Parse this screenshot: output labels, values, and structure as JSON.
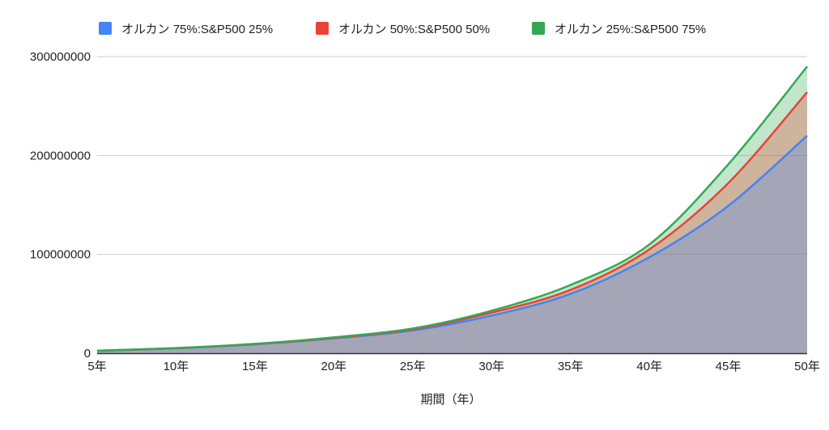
{
  "chart_data": {
    "type": "area",
    "title": "",
    "xlabel": "期間（年）",
    "ylabel": "",
    "categories": [
      "5年",
      "10年",
      "15年",
      "20年",
      "25年",
      "30年",
      "35年",
      "40年",
      "45年",
      "50年"
    ],
    "yticks": [
      "0",
      "100000000",
      "200000000",
      "300000000"
    ],
    "ylim": [
      0,
      300000000
    ],
    "grid": true,
    "legend_position": "top",
    "series": [
      {
        "name": "オルカン 75%:S&P500 25%",
        "color": "#4285f4",
        "values": [
          2500000,
          5000000,
          9000000,
          15000000,
          23000000,
          38000000,
          60000000,
          97000000,
          149000000,
          220000000
        ]
      },
      {
        "name": "オルカン 50%:S&P500 50%",
        "color": "#ea4335",
        "values": [
          2500000,
          5100000,
          9300000,
          15500000,
          24000000,
          41000000,
          64000000,
          105000000,
          172000000,
          264000000
        ]
      },
      {
        "name": "オルカン 25%:S&P500 75%",
        "color": "#34a853",
        "values": [
          2600000,
          5200000,
          9500000,
          16000000,
          25000000,
          43000000,
          69000000,
          110000000,
          191000000,
          290000000
        ]
      }
    ]
  },
  "legend": {
    "items": [
      {
        "label": "オルカン 75%:S&P500 25%",
        "color": "#4285f4"
      },
      {
        "label": "オルカン 50%:S&P500 50%",
        "color": "#ea4335"
      },
      {
        "label": "オルカン 25%:S&P500 75%",
        "color": "#34a853"
      }
    ]
  }
}
